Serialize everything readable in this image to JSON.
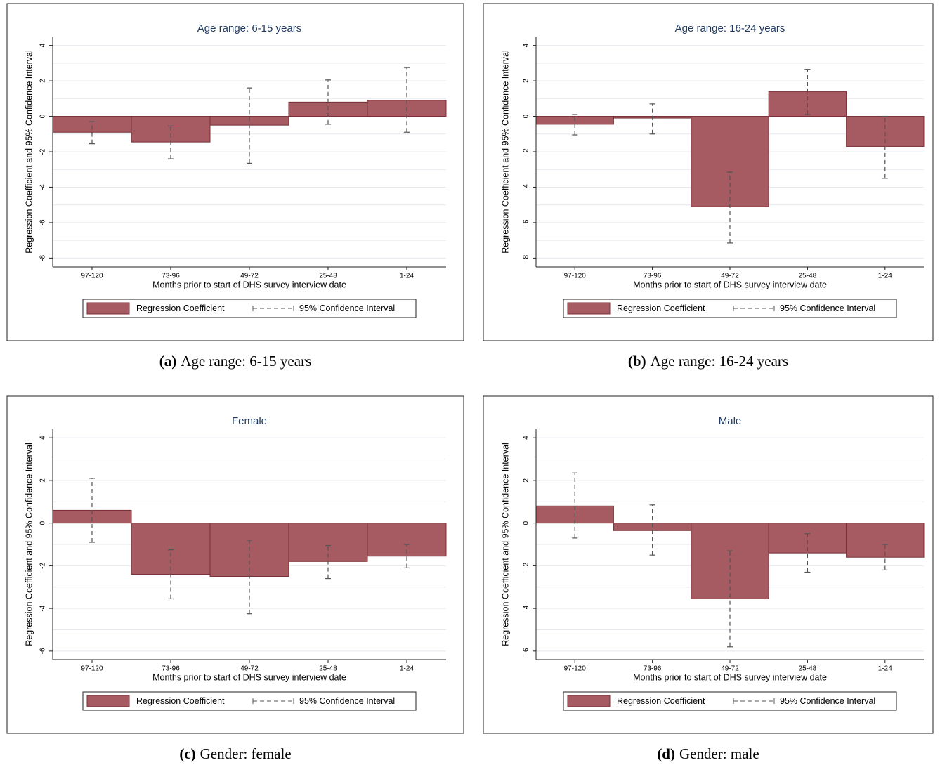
{
  "chart_data": [
    {
      "type": "bar",
      "title": "Age range: 6-15 years",
      "xlabel": "Months prior to start of DHS survey interview date",
      "ylabel": "Regression Coefficient and 95% Confidence Interval",
      "categories": [
        "97-120",
        "73-96",
        "49-72",
        "25-48",
        "1-24"
      ],
      "series": [
        {
          "name": "Regression Coefficient",
          "color": "#a65a61",
          "values": [
            -0.9,
            -1.45,
            -0.5,
            0.8,
            0.9
          ]
        }
      ],
      "error_bars": {
        "name": "95% Confidence Interval",
        "low": [
          -1.55,
          -2.4,
          -2.65,
          -0.45,
          -0.9
        ],
        "high": [
          -0.3,
          -0.55,
          1.6,
          2.05,
          2.75
        ]
      },
      "ylim": [
        -8.5,
        4.5
      ],
      "yticks": [
        4,
        2,
        0,
        -2,
        -4,
        -6,
        -8
      ],
      "minor_yticks": [
        3,
        1,
        -1,
        -3,
        -5,
        -7
      ],
      "grid": true,
      "legend": "bottom",
      "caption_label": "(a)",
      "caption": "Age range: 6-15 years"
    },
    {
      "type": "bar",
      "title": "Age range: 16-24 years",
      "xlabel": "Months prior to start of DHS survey interview date",
      "ylabel": "Regression Coefficient and 95% Confidence Interval",
      "categories": [
        "97-120",
        "73-96",
        "49-72",
        "25-48",
        "1-24"
      ],
      "series": [
        {
          "name": "Regression Coefficient",
          "color": "#a65a61",
          "values": [
            -0.45,
            -0.1,
            -5.1,
            1.4,
            -1.7
          ]
        }
      ],
      "error_bars": {
        "name": "95% Confidence Interval",
        "low": [
          -1.05,
          -1.0,
          -7.15,
          0.1,
          -3.5
        ],
        "high": [
          0.1,
          0.7,
          -3.15,
          2.65,
          0
        ]
      },
      "ylim": [
        -8.5,
        4.5
      ],
      "yticks": [
        4,
        2,
        0,
        -2,
        -4,
        -6,
        -8
      ],
      "minor_yticks": [
        3,
        1,
        -1,
        -3,
        -5,
        -7
      ],
      "grid": true,
      "legend": "bottom",
      "caption_label": "(b)",
      "caption": "Age range: 16-24 years"
    },
    {
      "type": "bar",
      "title": "Female",
      "xlabel": "Months prior to start of DHS survey interview date",
      "ylabel": "Regression Coefficient and 95% Confidence Interval",
      "categories": [
        "97-120",
        "73-96",
        "49-72",
        "25-48",
        "1-24"
      ],
      "series": [
        {
          "name": "Regression Coefficient",
          "color": "#a65a61",
          "values": [
            0.6,
            -2.4,
            -2.5,
            -1.8,
            -1.55
          ]
        }
      ],
      "error_bars": {
        "name": "95% Confidence Interval",
        "low": [
          -0.9,
          -3.55,
          -4.25,
          -2.6,
          -2.1
        ],
        "high": [
          2.1,
          -1.25,
          -0.8,
          -1.05,
          -1.0
        ]
      },
      "ylim": [
        -6.4,
        4.4
      ],
      "yticks": [
        4,
        2,
        0,
        -2,
        -4,
        -6
      ],
      "minor_yticks": [
        3,
        1,
        -1,
        -3,
        -5
      ],
      "grid": true,
      "legend": "bottom",
      "caption_label": "(c)",
      "caption": "Gender: female"
    },
    {
      "type": "bar",
      "title": "Male",
      "xlabel": "Months prior to start of DHS survey interview date",
      "ylabel": "Regression Coefficient and 95% Confidence Interval",
      "categories": [
        "97-120",
        "73-96",
        "49-72",
        "25-48",
        "1-24"
      ],
      "series": [
        {
          "name": "Regression Coefficient",
          "color": "#a65a61",
          "values": [
            0.8,
            -0.35,
            -3.55,
            -1.4,
            -1.6
          ]
        }
      ],
      "error_bars": {
        "name": "95% Confidence Interval",
        "low": [
          -0.7,
          -1.5,
          -5.8,
          -2.3,
          -2.2
        ],
        "high": [
          2.35,
          0.85,
          -1.3,
          -0.5,
          -1.0
        ]
      },
      "ylim": [
        -6.4,
        4.4
      ],
      "yticks": [
        4,
        2,
        0,
        -2,
        -4,
        -6
      ],
      "minor_yticks": [
        3,
        1,
        -1,
        -3,
        -5
      ],
      "grid": true,
      "legend": "bottom",
      "caption_label": "(d)",
      "caption": "Gender: male"
    }
  ]
}
